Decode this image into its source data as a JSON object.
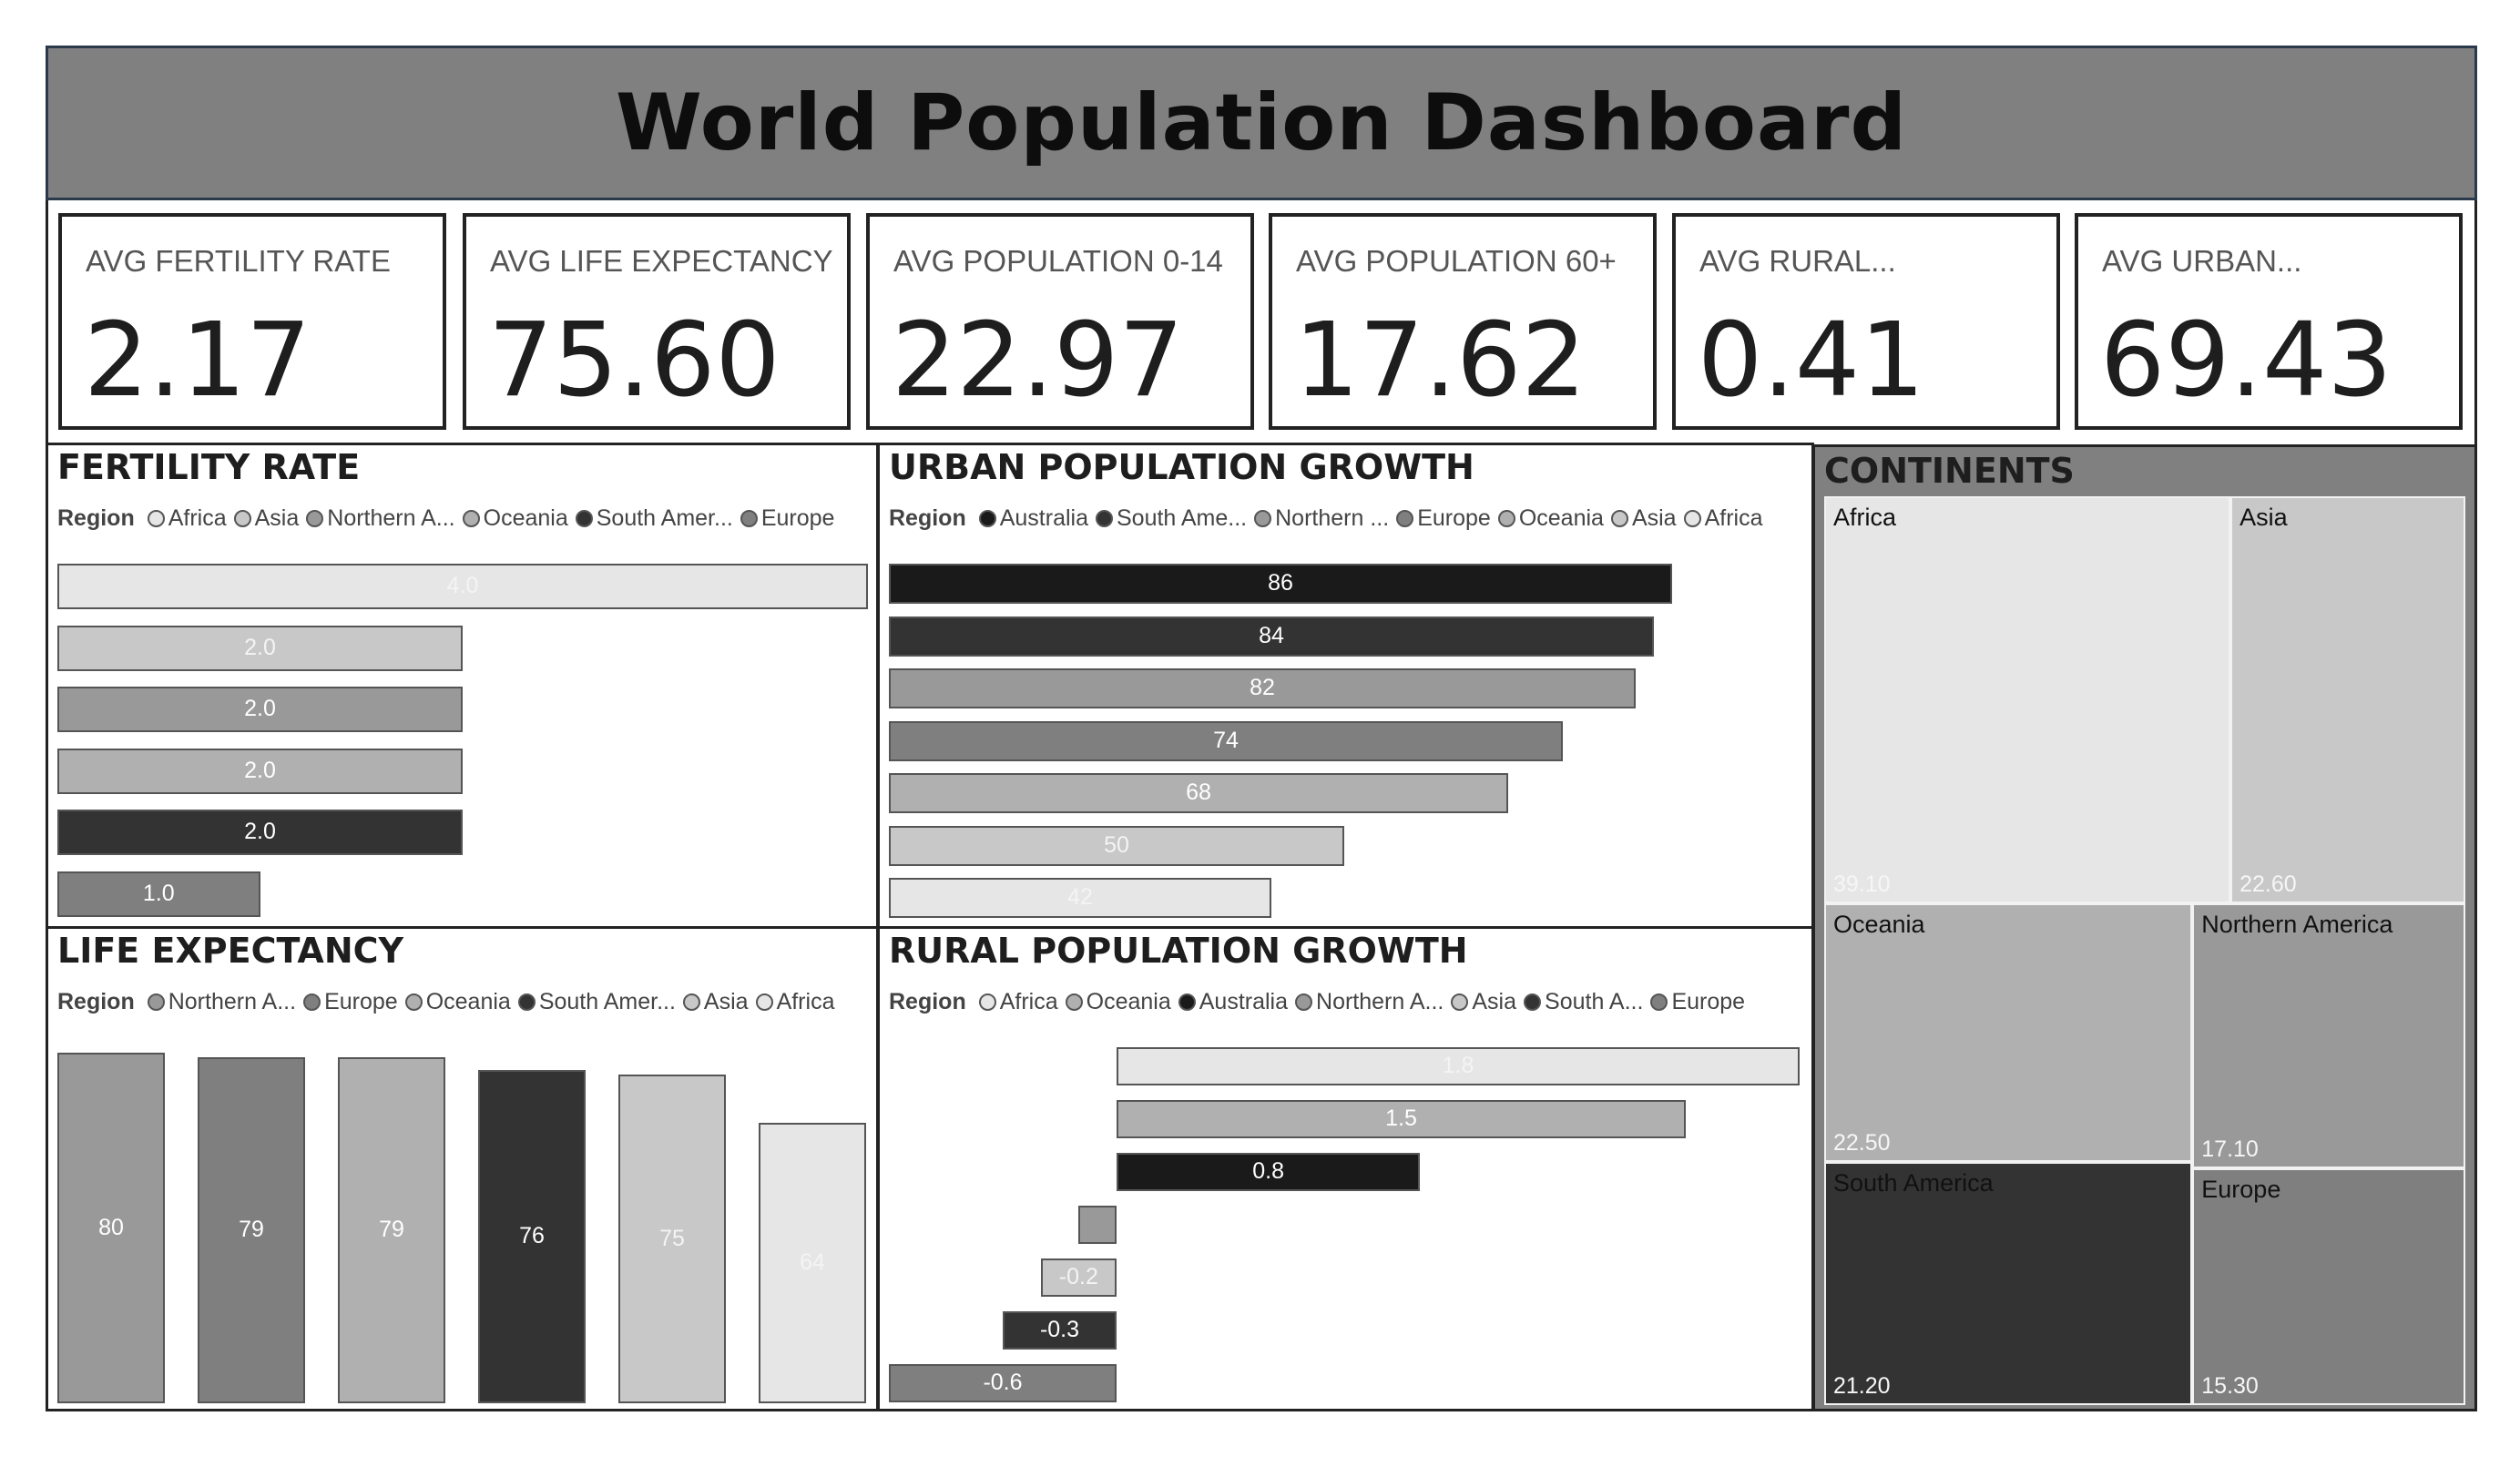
{
  "title": "World Population Dashboard",
  "kpis": [
    {
      "label": "AVG FERTILITY RATE",
      "value": "2.17"
    },
    {
      "label": "AVG LIFE EXPECTANCY",
      "value": "75.60"
    },
    {
      "label": "AVG POPULATION 0-14",
      "value": "22.97"
    },
    {
      "label": "AVG POPULATION 60+",
      "value": "17.62"
    },
    {
      "label": "AVG RURAL...",
      "value": "0.41"
    },
    {
      "label": "AVG URBAN...",
      "value": "69.43"
    }
  ],
  "colors": {
    "Africa": "#e6e6e6",
    "Asia": "#c8c8c8",
    "Northern America": "#7f7f7f",
    "Oceania": "#b0b0b0",
    "South America": "#333333",
    "Europe": "#999999",
    "Australia": "#1a1a1a"
  },
  "chart_data": [
    {
      "id": "fertility",
      "type": "bar",
      "orientation": "horizontal",
      "title": "FERTILITY RATE",
      "legend_title": "Region",
      "legend": [
        {
          "label": "Africa",
          "color": "#e6e6e6"
        },
        {
          "label": "Asia",
          "color": "#c8c8c8"
        },
        {
          "label": "Northern A...",
          "color": "#999999"
        },
        {
          "label": "Oceania",
          "color": "#b0b0b0"
        },
        {
          "label": "South Amer...",
          "color": "#333333"
        },
        {
          "label": "Europe",
          "color": "#7f7f7f"
        }
      ],
      "bars": [
        {
          "value": 4.0,
          "label": "4.0",
          "color": "#e6e6e6"
        },
        {
          "value": 2.0,
          "label": "2.0",
          "color": "#c8c8c8"
        },
        {
          "value": 2.0,
          "label": "2.0",
          "color": "#999999"
        },
        {
          "value": 2.0,
          "label": "2.0",
          "color": "#b0b0b0"
        },
        {
          "value": 2.0,
          "label": "2.0",
          "color": "#333333"
        },
        {
          "value": 1.0,
          "label": "1.0",
          "color": "#7f7f7f"
        }
      ],
      "xlim": [
        0,
        4
      ]
    },
    {
      "id": "urban",
      "type": "bar",
      "orientation": "horizontal",
      "title": "URBAN POPULATION GROWTH",
      "legend_title": "Region",
      "legend": [
        {
          "label": "Australia",
          "color": "#1a1a1a"
        },
        {
          "label": "South Ame...",
          "color": "#333333"
        },
        {
          "label": "Northern ...",
          "color": "#999999"
        },
        {
          "label": "Europe",
          "color": "#7f7f7f"
        },
        {
          "label": "Oceania",
          "color": "#b0b0b0"
        },
        {
          "label": "Asia",
          "color": "#c8c8c8"
        },
        {
          "label": "Africa",
          "color": "#e6e6e6"
        }
      ],
      "bars": [
        {
          "value": 86,
          "label": "86",
          "color": "#1a1a1a"
        },
        {
          "value": 84,
          "label": "84",
          "color": "#333333"
        },
        {
          "value": 82,
          "label": "82",
          "color": "#999999"
        },
        {
          "value": 74,
          "label": "74",
          "color": "#7f7f7f"
        },
        {
          "value": 68,
          "label": "68",
          "color": "#b0b0b0"
        },
        {
          "value": 50,
          "label": "50",
          "color": "#c8c8c8"
        },
        {
          "value": 42,
          "label": "42",
          "color": "#e6e6e6"
        }
      ],
      "xlim": [
        0,
        86
      ]
    },
    {
      "id": "life",
      "type": "bar",
      "orientation": "vertical",
      "title": "LIFE EXPECTANCY",
      "legend_title": "Region",
      "legend": [
        {
          "label": "Northern A...",
          "color": "#999999"
        },
        {
          "label": "Europe",
          "color": "#7f7f7f"
        },
        {
          "label": "Oceania",
          "color": "#b0b0b0"
        },
        {
          "label": "South Amer...",
          "color": "#333333"
        },
        {
          "label": "Asia",
          "color": "#c8c8c8"
        },
        {
          "label": "Africa",
          "color": "#e6e6e6"
        }
      ],
      "bars": [
        {
          "value": 80,
          "label": "80",
          "color": "#999999"
        },
        {
          "value": 79,
          "label": "79",
          "color": "#7f7f7f"
        },
        {
          "value": 79,
          "label": "79",
          "color": "#b0b0b0"
        },
        {
          "value": 76,
          "label": "76",
          "color": "#333333"
        },
        {
          "value": 75,
          "label": "75",
          "color": "#c8c8c8"
        },
        {
          "value": 64,
          "label": "64",
          "color": "#e6e6e6"
        }
      ],
      "ylim": [
        0,
        80
      ]
    },
    {
      "id": "rural",
      "type": "bar",
      "orientation": "horizontal",
      "title": "RURAL POPULATION GROWTH",
      "legend_title": "Region",
      "legend": [
        {
          "label": "Africa",
          "color": "#e6e6e6"
        },
        {
          "label": "Oceania",
          "color": "#b0b0b0"
        },
        {
          "label": "Australia",
          "color": "#1a1a1a"
        },
        {
          "label": "Northern A...",
          "color": "#999999"
        },
        {
          "label": "Asia",
          "color": "#c8c8c8"
        },
        {
          "label": "South A...",
          "color": "#333333"
        },
        {
          "label": "Europe",
          "color": "#7f7f7f"
        }
      ],
      "bars": [
        {
          "value": 1.8,
          "label": "1.8",
          "color": "#e6e6e6"
        },
        {
          "value": 1.5,
          "label": "1.5",
          "color": "#b0b0b0"
        },
        {
          "value": 0.8,
          "label": "0.8",
          "color": "#1a1a1a"
        },
        {
          "value": -0.1,
          "label": "",
          "color": "#999999"
        },
        {
          "value": -0.2,
          "label": "-0.2",
          "color": "#c8c8c8"
        },
        {
          "value": -0.3,
          "label": "-0.3",
          "color": "#333333"
        },
        {
          "value": -0.6,
          "label": "-0.6",
          "color": "#7f7f7f"
        }
      ],
      "xlim": [
        -0.6,
        1.8
      ]
    },
    {
      "id": "continents",
      "type": "treemap",
      "title": "CONTINENTS",
      "items": [
        {
          "name": "Africa",
          "value": 39.1,
          "label": "39.10",
          "color": "#e6e6e6"
        },
        {
          "name": "Asia",
          "value": 22.6,
          "label": "22.60",
          "color": "#c8c8c8"
        },
        {
          "name": "Oceania",
          "value": 22.5,
          "label": "22.50",
          "color": "#b0b0b0"
        },
        {
          "name": "Northern America",
          "value": 17.1,
          "label": "17.10",
          "color": "#999999"
        },
        {
          "name": "South America",
          "value": 21.2,
          "label": "21.20",
          "color": "#333333"
        },
        {
          "name": "Europe",
          "value": 15.3,
          "label": "15.30",
          "color": "#7f7f7f"
        }
      ]
    }
  ]
}
